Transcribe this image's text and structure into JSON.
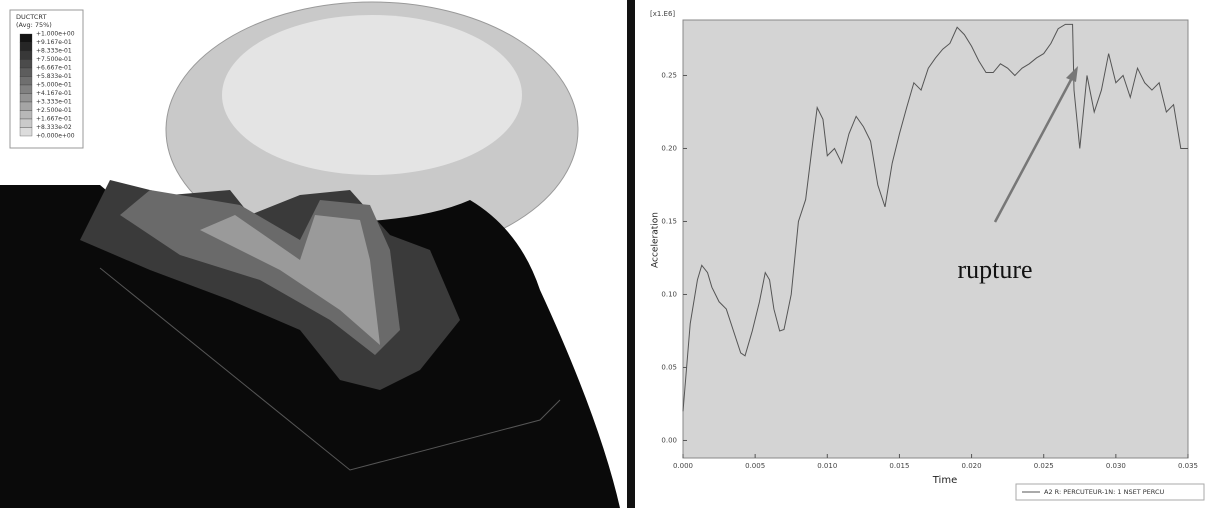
{
  "contour_legend": {
    "title": "DUCTCRT",
    "subtitle": "(Avg: 75%)",
    "levels": [
      "+1.000e+00",
      "+9.167e-01",
      "+8.333e-01",
      "+7.500e-01",
      "+6.667e-01",
      "+5.833e-01",
      "+5.000e-01",
      "+4.167e-01",
      "+3.333e-01",
      "+2.500e-01",
      "+1.667e-01",
      "+8.333e-02",
      "+0.000e+00"
    ]
  },
  "chart_data": {
    "type": "line",
    "y_multiplier": "[x1.E6]",
    "x_label": "Time",
    "y_label": "Acceleration",
    "annotation": "rupture",
    "xlim": [
      0,
      0.035
    ],
    "ylim": [
      -0.012,
      0.288
    ],
    "xticks": [
      {
        "value": 0,
        "label": "0.000"
      },
      0.005,
      {
        "value": 0.01,
        "label": "0.010"
      },
      0.015,
      {
        "value": 0.02,
        "label": "0.020"
      },
      0.025,
      {
        "value": 0.03,
        "label": "0.030"
      },
      0.035
    ],
    "yticks": [
      {
        "value": 0,
        "label": "0.00"
      },
      0.05,
      {
        "value": 0.1,
        "label": "0.10"
      },
      0.15,
      {
        "value": 0.2,
        "label": "0.20"
      },
      0.25
    ],
    "x": [
      0,
      0.0005,
      0.001,
      0.0013,
      0.0017,
      0.002,
      0.0025,
      0.003,
      0.0035,
      0.004,
      0.0043,
      0.0048,
      0.0053,
      0.0057,
      0.006,
      0.0063,
      0.0067,
      0.007,
      0.0075,
      0.008,
      0.0085,
      0.009,
      0.0093,
      0.0097,
      0.01,
      0.0105,
      0.011,
      0.0115,
      0.012,
      0.0125,
      0.013,
      0.0135,
      0.014,
      0.0145,
      0.015,
      0.0155,
      0.016,
      0.0165,
      0.017,
      0.0175,
      0.018,
      0.0185,
      0.019,
      0.0195,
      0.02,
      0.0205,
      0.021,
      0.0215,
      0.022,
      0.0225,
      0.023,
      0.0235,
      0.024,
      0.0245,
      0.025,
      0.0255,
      0.026,
      0.0265,
      0.027,
      0.0271,
      0.0275,
      0.028,
      0.0285,
      0.029,
      0.0295,
      0.03,
      0.0305,
      0.031,
      0.0315,
      0.032,
      0.0325,
      0.033,
      0.0335,
      0.034,
      0.0345,
      0.035
    ],
    "series": [
      {
        "name": "A2 R: PERCUTEUR-1N: 1 NSET PERCU",
        "color": "#555555",
        "values": [
          0.02,
          0.08,
          0.11,
          0.12,
          0.115,
          0.105,
          0.095,
          0.09,
          0.075,
          0.06,
          0.058,
          0.075,
          0.095,
          0.115,
          0.11,
          0.09,
          0.075,
          0.076,
          0.1,
          0.15,
          0.165,
          0.205,
          0.228,
          0.22,
          0.195,
          0.2,
          0.19,
          0.21,
          0.222,
          0.215,
          0.205,
          0.175,
          0.16,
          0.19,
          0.21,
          0.228,
          0.245,
          0.24,
          0.255,
          0.262,
          0.268,
          0.272,
          0.283,
          0.278,
          0.27,
          0.26,
          0.252,
          0.252,
          0.258,
          0.255,
          0.25,
          0.255,
          0.258,
          0.262,
          0.265,
          0.272,
          0.282,
          0.285,
          0.285,
          0.24,
          0.2,
          0.25,
          0.225,
          0.24,
          0.265,
          0.245,
          0.25,
          0.235,
          0.255,
          0.245,
          0.24,
          0.245,
          0.225,
          0.23,
          0.2,
          0.2
        ]
      }
    ],
    "plot_background": "#d4d4d4"
  }
}
